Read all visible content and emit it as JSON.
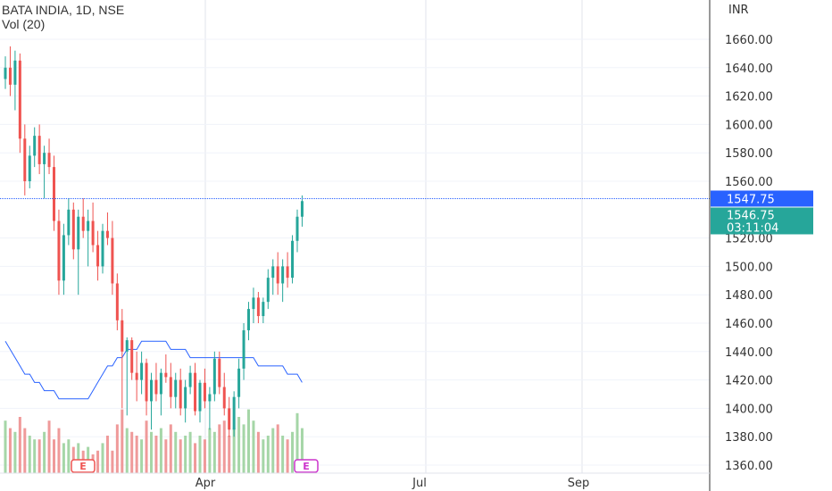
{
  "header": {
    "symbol_line": "BATA INDIA, 1D, NSE",
    "volume_line": "Vol (20)"
  },
  "colors": {
    "up": "#26a69a",
    "down": "#ef5350",
    "up_vol": "#a5d6a7",
    "down_vol": "#ef9a9a",
    "ma": "#2962ff",
    "last_price": "#2962ff",
    "current_tag": "#26a69a",
    "grid": "#e0e3eb"
  },
  "chart_data": {
    "type": "candlestick",
    "currency": "INR",
    "y_ticks": [
      "1660.00",
      "1640.00",
      "1620.00",
      "1600.00",
      "1580.00",
      "1560.00",
      "1520.00",
      "1500.00",
      "1480.00",
      "1460.00",
      "1440.00",
      "1420.00",
      "1400.00",
      "1380.00",
      "1360.00"
    ],
    "ylim": [
      1355,
      1675
    ],
    "x_labels": [
      "Apr",
      "Jul",
      "Sep"
    ],
    "price_tags": {
      "last_price": "1547.75",
      "current_price": "1546.75",
      "countdown": "03:11:04"
    },
    "events": [
      "E",
      "E"
    ],
    "candles": [
      [
        1632,
        1648,
        1625,
        1640
      ],
      [
        1640,
        1655,
        1620,
        1628
      ],
      [
        1628,
        1652,
        1610,
        1645
      ],
      [
        1645,
        1650,
        1580,
        1590
      ],
      [
        1590,
        1600,
        1550,
        1560
      ],
      [
        1560,
        1585,
        1555,
        1578
      ],
      [
        1578,
        1598,
        1570,
        1592
      ],
      [
        1592,
        1600,
        1565,
        1572
      ],
      [
        1572,
        1585,
        1548,
        1580
      ],
      [
        1580,
        1590,
        1565,
        1570
      ],
      [
        1570,
        1578,
        1525,
        1532
      ],
      [
        1532,
        1540,
        1480,
        1490
      ],
      [
        1490,
        1530,
        1480,
        1522
      ],
      [
        1522,
        1548,
        1515,
        1540
      ],
      [
        1540,
        1545,
        1505,
        1512
      ],
      [
        1512,
        1540,
        1480,
        1535
      ],
      [
        1535,
        1548,
        1520,
        1525
      ],
      [
        1525,
        1540,
        1500,
        1532
      ],
      [
        1532,
        1545,
        1510,
        1515
      ],
      [
        1515,
        1525,
        1490,
        1500
      ],
      [
        1500,
        1530,
        1495,
        1525
      ],
      [
        1525,
        1538,
        1515,
        1520
      ],
      [
        1520,
        1532,
        1480,
        1488
      ],
      [
        1488,
        1495,
        1455,
        1462
      ],
      [
        1462,
        1470,
        1400,
        1440
      ],
      [
        1440,
        1450,
        1395,
        1448
      ],
      [
        1448,
        1450,
        1420,
        1425
      ],
      [
        1425,
        1440,
        1405,
        1420
      ],
      [
        1420,
        1440,
        1410,
        1432
      ],
      [
        1432,
        1435,
        1395,
        1405
      ],
      [
        1405,
        1425,
        1385,
        1420
      ],
      [
        1420,
        1432,
        1405,
        1410
      ],
      [
        1410,
        1428,
        1395,
        1425
      ],
      [
        1425,
        1438,
        1418,
        1422
      ],
      [
        1422,
        1432,
        1400,
        1408
      ],
      [
        1408,
        1425,
        1400,
        1420
      ],
      [
        1420,
        1428,
        1395,
        1400
      ],
      [
        1400,
        1420,
        1390,
        1415
      ],
      [
        1415,
        1430,
        1410,
        1425
      ],
      [
        1425,
        1432,
        1395,
        1398
      ],
      [
        1398,
        1420,
        1390,
        1418
      ],
      [
        1418,
        1428,
        1400,
        1405
      ],
      [
        1405,
        1415,
        1385,
        1410
      ],
      [
        1410,
        1440,
        1405,
        1435
      ],
      [
        1435,
        1440,
        1410,
        1415
      ],
      [
        1415,
        1425,
        1395,
        1400
      ],
      [
        1400,
        1408,
        1380,
        1385
      ],
      [
        1385,
        1412,
        1380,
        1408
      ],
      [
        1408,
        1435,
        1400,
        1428
      ],
      [
        1428,
        1460,
        1420,
        1455
      ],
      [
        1455,
        1475,
        1448,
        1470
      ],
      [
        1470,
        1485,
        1460,
        1478
      ],
      [
        1478,
        1482,
        1460,
        1465
      ],
      [
        1465,
        1478,
        1460,
        1475
      ],
      [
        1475,
        1498,
        1470,
        1492
      ],
      [
        1492,
        1505,
        1480,
        1500
      ],
      [
        1500,
        1510,
        1480,
        1488
      ],
      [
        1488,
        1505,
        1475,
        1500
      ],
      [
        1500,
        1510,
        1485,
        1492
      ],
      [
        1492,
        1522,
        1488,
        1518
      ],
      [
        1518,
        1540,
        1510,
        1535
      ],
      [
        1535,
        1550,
        1528,
        1546
      ]
    ],
    "volume": [
      14,
      12,
      11,
      15,
      12,
      10,
      9,
      9,
      11,
      14,
      9,
      12,
      8,
      9,
      7,
      8,
      6,
      7,
      5,
      6,
      8,
      10,
      6,
      13,
      17,
      12,
      11,
      10,
      9,
      14,
      11,
      10,
      12,
      9,
      13,
      11,
      9,
      10,
      11,
      8,
      10,
      9,
      12,
      11,
      13,
      14,
      10,
      12,
      15,
      13,
      17,
      14,
      11,
      9,
      10,
      12,
      13,
      10,
      9,
      11,
      16,
      12
    ],
    "ma20": [
      16,
      15,
      14,
      13,
      12,
      12,
      11,
      11,
      10,
      10,
      10,
      9,
      9,
      9,
      9,
      9,
      9,
      9,
      10,
      11,
      12,
      13,
      13,
      14,
      14,
      15,
      15,
      15,
      16,
      16,
      16,
      16,
      16,
      16,
      15,
      15,
      15,
      15,
      14,
      14,
      14,
      14,
      14,
      14,
      14,
      14,
      14,
      14,
      14,
      14,
      14,
      14,
      13,
      13,
      13,
      13,
      13,
      13,
      12,
      12,
      12,
      11
    ]
  }
}
